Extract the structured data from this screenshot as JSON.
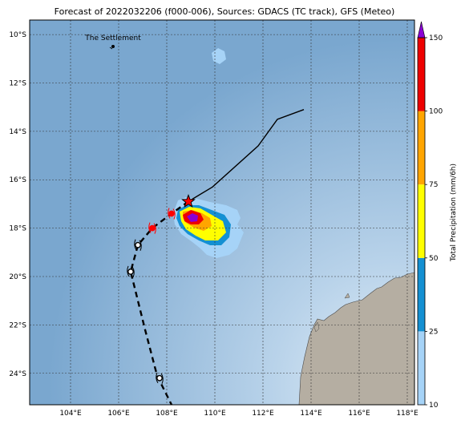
{
  "title": "Forecast of 2022032206 (f000-006), Sources: GDACS (TC track), GFS (Meteo)",
  "place_label": "The Settlement",
  "map": {
    "lon_range": [
      102.3,
      118.3
    ],
    "lat_range": [
      -25.3,
      -9.4
    ],
    "lon_ticks": [
      "104°E",
      "106°E",
      "108°E",
      "110°E",
      "112°E",
      "114°E",
      "116°E",
      "118°E"
    ],
    "lat_ticks": [
      "10°S",
      "12°S",
      "14°S",
      "16°S",
      "18°S",
      "20°S",
      "22°S",
      "24°S"
    ],
    "grid": true,
    "colors": {
      "ocean": "#7aa7cf",
      "land": "#b5aea2",
      "track_past": "#000000",
      "track_forecast": "#000000",
      "current_marker": "#ff0000"
    }
  },
  "track_past": [
    {
      "lon": 113.7,
      "lat": -13.1
    },
    {
      "lon": 112.6,
      "lat": -13.5
    },
    {
      "lon": 111.8,
      "lat": -14.6
    },
    {
      "lon": 109.9,
      "lat": -16.3
    },
    {
      "lon": 108.9,
      "lat": -16.9
    }
  ],
  "track_forecast": [
    {
      "lon": 108.9,
      "lat": -16.9
    },
    {
      "lon": 108.2,
      "lat": -17.4
    },
    {
      "lon": 107.4,
      "lat": -18.0
    },
    {
      "lon": 106.8,
      "lat": -18.7
    },
    {
      "lon": 106.5,
      "lat": -19.8
    },
    {
      "lon": 107.1,
      "lat": -22.2
    },
    {
      "lon": 107.6,
      "lat": -24.1
    },
    {
      "lon": 108.2,
      "lat": -25.3
    }
  ],
  "forecast_points": [
    {
      "lon": 108.2,
      "lat": -17.4,
      "color": "#ff0000"
    },
    {
      "lon": 107.4,
      "lat": -18.0,
      "color": "#ff0000"
    },
    {
      "lon": 106.8,
      "lat": -18.7,
      "color": "#000000"
    },
    {
      "lon": 106.5,
      "lat": -19.8,
      "color": "#000000"
    },
    {
      "lon": 107.7,
      "lat": -24.2,
      "color": "#000000"
    }
  ],
  "current_position": {
    "lon": 108.9,
    "lat": -16.9
  },
  "colorbar": {
    "label": "Total Precipitation (mm/6h)",
    "ticks": [
      "10",
      "25",
      "50",
      "75",
      "100",
      "150"
    ],
    "bands": [
      {
        "from": 10,
        "to": 25,
        "color": "#a6d3f7"
      },
      {
        "from": 25,
        "to": 50,
        "color": "#1490d2"
      },
      {
        "from": 50,
        "to": 75,
        "color": "#ffff00"
      },
      {
        "from": 75,
        "to": 100,
        "color": "#ffa500"
      },
      {
        "from": 100,
        "to": 150,
        "color": "#ee0000"
      }
    ],
    "extend_color": "#8a00d4"
  }
}
